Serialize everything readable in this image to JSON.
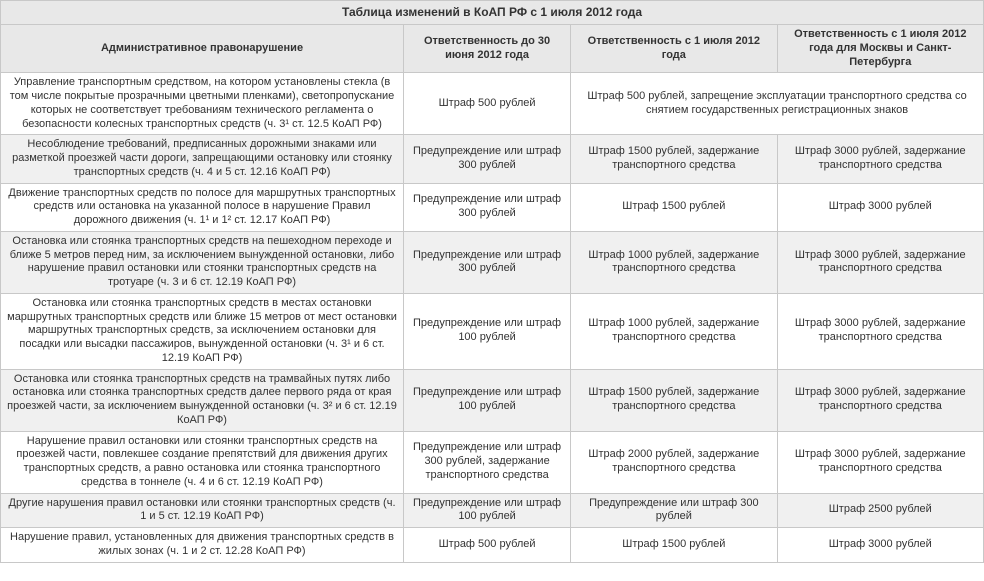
{
  "title": "Таблица изменений в КоАП РФ с 1 июля 2012 года",
  "headers": {
    "violation": "Административное правонарушение",
    "before": "Ответственность до 30 июня 2012 года",
    "after": "Ответственность с 1 июля 2012 года",
    "moscow": "Ответственность с 1 июля 2012 года для Москвы и Санкт-Петербурга"
  },
  "rows": [
    {
      "violation": "Управление транспортным средством, на котором установлены стекла (в том числе покрытые прозрачными цветными пленками), светопропускание которых не соответствует требованиям технического регламента о безопасности колесных транспортных средств (ч. 3¹ ст. 12.5 КоАП РФ)",
      "before": "Штраф 500 рублей",
      "after": "Штраф 500 рублей, запрещение эксплуатации транспортного средства со снятием государственных регистрационных знаков",
      "merged": true
    },
    {
      "violation": "Несоблюдение требований, предписанных дорожными знаками или разметкой проезжей части дороги, запрещающими остановку или стоянку транспортных средств (ч. 4 и 5 ст. 12.16 КоАП РФ)",
      "before": "Предупреждение или штраф 300 рублей",
      "after": "Штраф 1500 рублей, задержание транспортного средства",
      "moscow": "Штраф 3000 рублей, задержание транспортного средства"
    },
    {
      "violation": "Движение транспортных средств по полосе для маршрутных транспортных средств или остановка на указанной полосе в нарушение Правил дорожного движения (ч. 1¹ и 1² ст. 12.17 КоАП РФ)",
      "before": "Предупреждение или штраф 300 рублей",
      "after": "Штраф 1500 рублей",
      "moscow": "Штраф 3000 рублей"
    },
    {
      "violation": "Остановка или стоянка транспортных средств на пешеходном переходе и ближе 5 метров перед ним, за исключением вынужденной остановки, либо нарушение правил остановки или стоянки транспортных средств на тротуаре (ч. 3 и 6 ст. 12.19 КоАП РФ)",
      "before": "Предупреждение или штраф 300 рублей",
      "after": "Штраф 1000 рублей, задержание транспортного средства",
      "moscow": "Штраф 3000 рублей, задержание транспортного средства"
    },
    {
      "violation": "Остановка или стоянка транспортных средств в местах остановки маршрутных транспортных средств или ближе 15 метров от мест остановки маршрутных транспортных средств, за исключением остановки для посадки или высадки пассажиров, вынужденной остановки (ч. 3¹ и 6 ст. 12.19 КоАП РФ)",
      "before": "Предупреждение или штраф 100 рублей",
      "after": "Штраф 1000 рублей, задержание транспортного средства",
      "moscow": "Штраф 3000 рублей, задержание транспортного средства"
    },
    {
      "violation": "Остановка или стоянка транспортных средств на трамвайных путях либо остановка или стоянка транспортных средств далее первого ряда от края проезжей части, за исключением вынужденной остановки (ч. 3² и 6 ст. 12.19 КоАП РФ)",
      "before": "Предупреждение или штраф 100 рублей",
      "after": "Штраф 1500 рублей, задержание транспортного средства",
      "moscow": "Штраф 3000 рублей, задержание транспортного средства"
    },
    {
      "violation": "Нарушение правил остановки или стоянки транспортных средств на проезжей части, повлекшее создание препятствий для движения других транспортных средств, а равно остановка или стоянка транспортного средства в тоннеле (ч. 4 и 6 ст. 12.19 КоАП РФ)",
      "before": "Предупреждение или штраф 300 рублей, задержание транспортного средства",
      "after": "Штраф 2000 рублей, задержание транспортного средства",
      "moscow": "Штраф 3000 рублей, задержание транспортного средства"
    },
    {
      "violation": "Другие нарушения правил остановки или стоянки транспортных средств (ч. 1 и 5 ст. 12.19 КоАП РФ)",
      "before": "Предупреждение или штраф 100 рублей",
      "after": "Предупреждение или штраф 300 рублей",
      "moscow": "Штраф 2500 рублей"
    },
    {
      "violation": "Нарушение правил, установленных для движения транспортных средств в жилых зонах (ч. 1 и 2 ст. 12.28 КоАП РФ)",
      "before": "Штраф 500 рублей",
      "after": "Штраф 1500 рублей",
      "moscow": "Штраф 3000 рублей"
    }
  ],
  "style": {
    "header_bg": "#e8e8e8",
    "row_alt_bg": "#f0f0f0",
    "border_color": "#c8c8c8",
    "font_size": 11,
    "title_font_size": 12,
    "text_color": "#333333"
  }
}
